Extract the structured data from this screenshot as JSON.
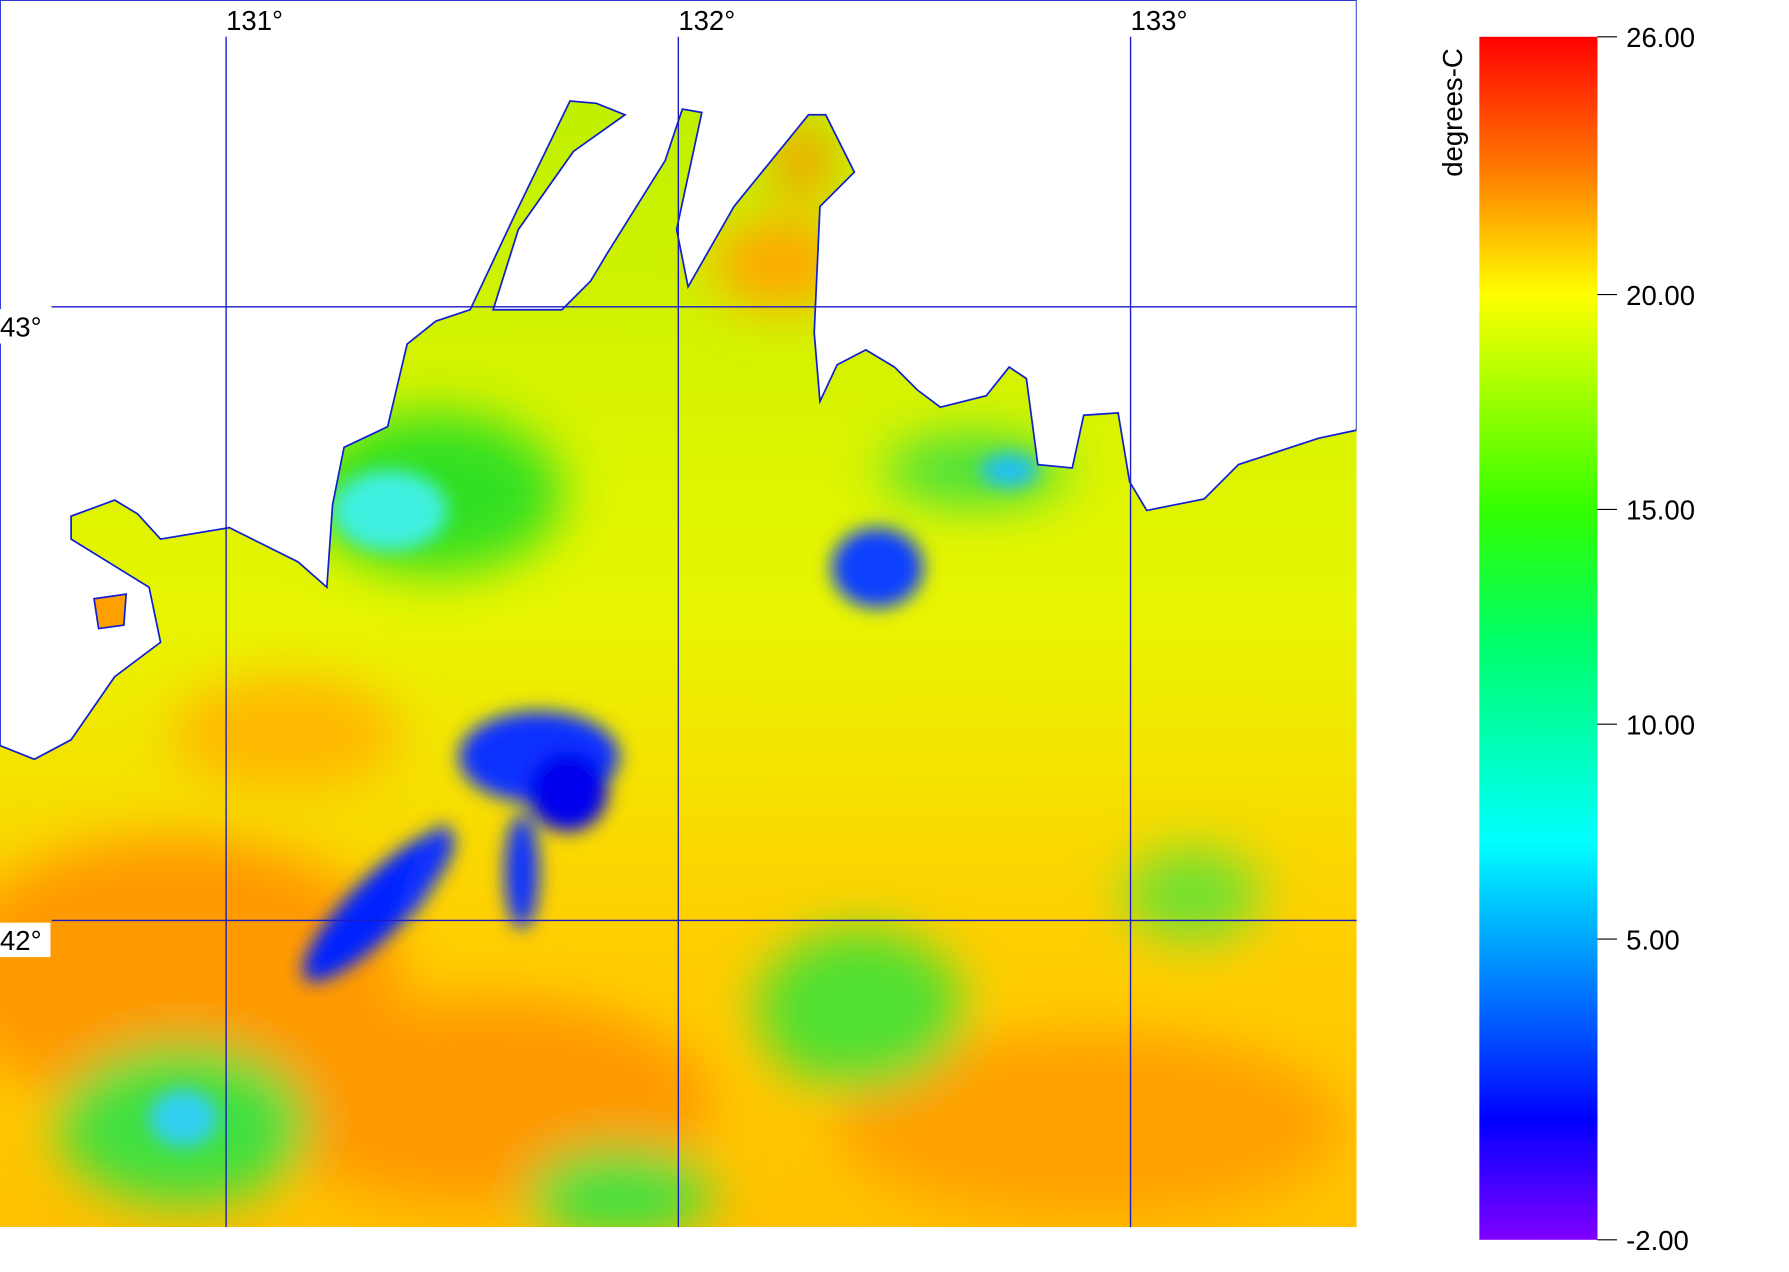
{
  "map": {
    "lon_range": [
      130.5,
      133.5
    ],
    "lat_range": [
      41.5,
      43.5
    ],
    "longitudes": [
      {
        "value": 131,
        "label": "131°"
      },
      {
        "value": 132,
        "label": "132°"
      },
      {
        "value": 133,
        "label": "133°"
      }
    ],
    "latitudes": [
      {
        "value": 43,
        "label": "43°"
      },
      {
        "value": 42,
        "label": "42°"
      }
    ]
  },
  "colorbar": {
    "title": "degrees-C",
    "range": [
      -2,
      26
    ],
    "ticks": [
      {
        "value": 26,
        "label": "26.00"
      },
      {
        "value": 20,
        "label": "20.00"
      },
      {
        "value": 15,
        "label": "15.00"
      },
      {
        "value": 10,
        "label": "10.00"
      },
      {
        "value": 5,
        "label": "5.00"
      },
      {
        "value": -2,
        "label": "-2.00"
      }
    ]
  }
}
